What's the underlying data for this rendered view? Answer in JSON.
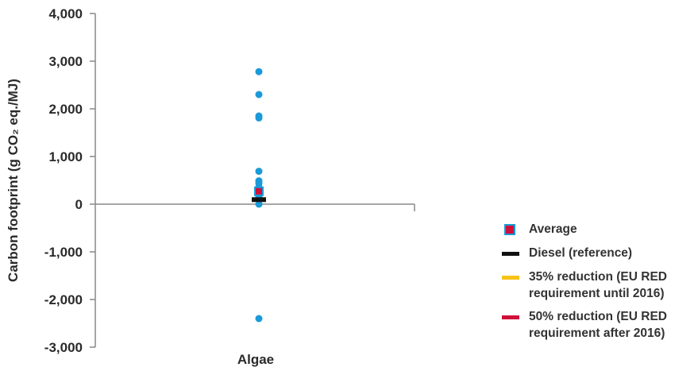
{
  "chart_data": {
    "type": "scatter",
    "ylabel": "Carbon footprint (g CO₂ eq./MJ)",
    "ylim": [
      -3000,
      4000
    ],
    "yticks": [
      4000,
      3000,
      2000,
      1000,
      0,
      -1000,
      -2000,
      -3000
    ],
    "ytick_labels": [
      "4,000",
      "3,000",
      "2,000",
      "1,000",
      "0",
      "-1,000",
      "-2,000",
      "-3,000"
    ],
    "categories": [
      "Algae"
    ],
    "points": [
      {
        "category": "Algae",
        "value": 2780
      },
      {
        "category": "Algae",
        "value": 2300
      },
      {
        "category": "Algae",
        "value": 1850
      },
      {
        "category": "Algae",
        "value": 1810
      },
      {
        "category": "Algae",
        "value": 690
      },
      {
        "category": "Algae",
        "value": 490
      },
      {
        "category": "Algae",
        "value": 440
      },
      {
        "category": "Algae",
        "value": 360
      },
      {
        "category": "Algae",
        "value": 320
      },
      {
        "category": "Algae",
        "value": 280
      },
      {
        "category": "Algae",
        "value": 240
      },
      {
        "category": "Algae",
        "value": 200
      },
      {
        "category": "Algae",
        "value": 160
      },
      {
        "category": "Algae",
        "value": 120
      },
      {
        "category": "Algae",
        "value": 0
      },
      {
        "category": "Algae",
        "value": -2400
      }
    ],
    "average": {
      "category": "Algae",
      "value": 270
    },
    "diesel_reference": {
      "category": "Algae",
      "value": 95
    },
    "colors": {
      "points": "#1a9ad9",
      "average": "#d0103a",
      "diesel": "#111111",
      "reduction35": "#f7c21a",
      "reduction50": "#d0103a",
      "axis": "#888888"
    },
    "legend": [
      {
        "label": "Average",
        "marker": "square",
        "color": "#d0103a"
      },
      {
        "label": "Diesel (reference)",
        "marker": "line",
        "color": "#111111"
      },
      {
        "label": "35% reduction (EU RED requirement until 2016)",
        "marker": "line",
        "color": "#f7c21a"
      },
      {
        "label": "50% reduction (EU RED requirement after 2016)",
        "marker": "line",
        "color": "#d0103a"
      }
    ],
    "legend_position": "right",
    "grid": false
  }
}
